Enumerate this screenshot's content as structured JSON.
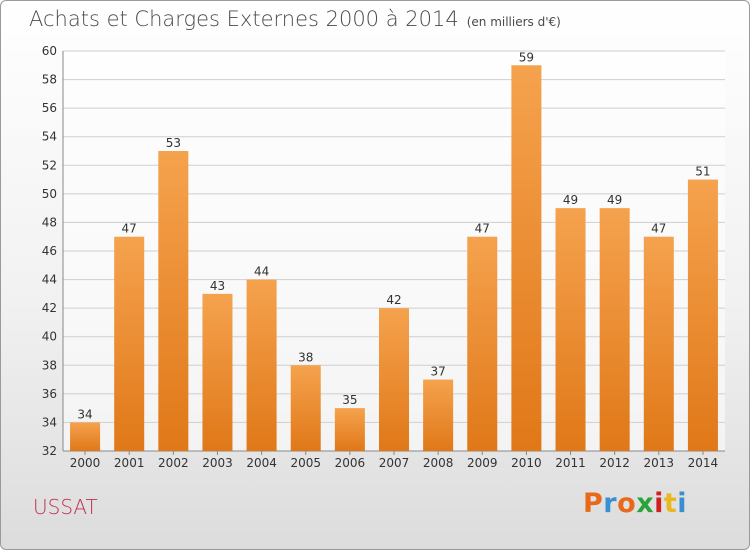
{
  "header": {
    "title": "Achats et Charges Externes 2000 à 2014",
    "unit": "(en milliers d'€)"
  },
  "footer": {
    "commune": "USSAT",
    "brand": "Proxiti"
  },
  "colors": {
    "bar_top": "#f5a24e",
    "bar_bottom": "#e07818",
    "commune_text": "#c03050",
    "brand_letters": [
      "#e8691a",
      "#3a8fd0",
      "#e8691a",
      "#2aa43a",
      "#d02020",
      "#e8b820",
      "#3a8fd0"
    ]
  },
  "chart_data": {
    "type": "bar",
    "categories": [
      "2000",
      "2001",
      "2002",
      "2003",
      "2004",
      "2005",
      "2006",
      "2007",
      "2008",
      "2009",
      "2010",
      "2011",
      "2012",
      "2013",
      "2014"
    ],
    "values": [
      34,
      47,
      53,
      43,
      44,
      38,
      35,
      42,
      37,
      47,
      59,
      49,
      49,
      47,
      51
    ],
    "title": "Achats et Charges Externes 2000 à 2014",
    "ylabel": "",
    "xlabel": "",
    "ylim": [
      32,
      60
    ],
    "yticks": [
      32,
      34,
      36,
      38,
      40,
      42,
      44,
      46,
      48,
      50,
      52,
      54,
      56,
      58,
      60
    ],
    "grid": true,
    "data_labels": true
  }
}
